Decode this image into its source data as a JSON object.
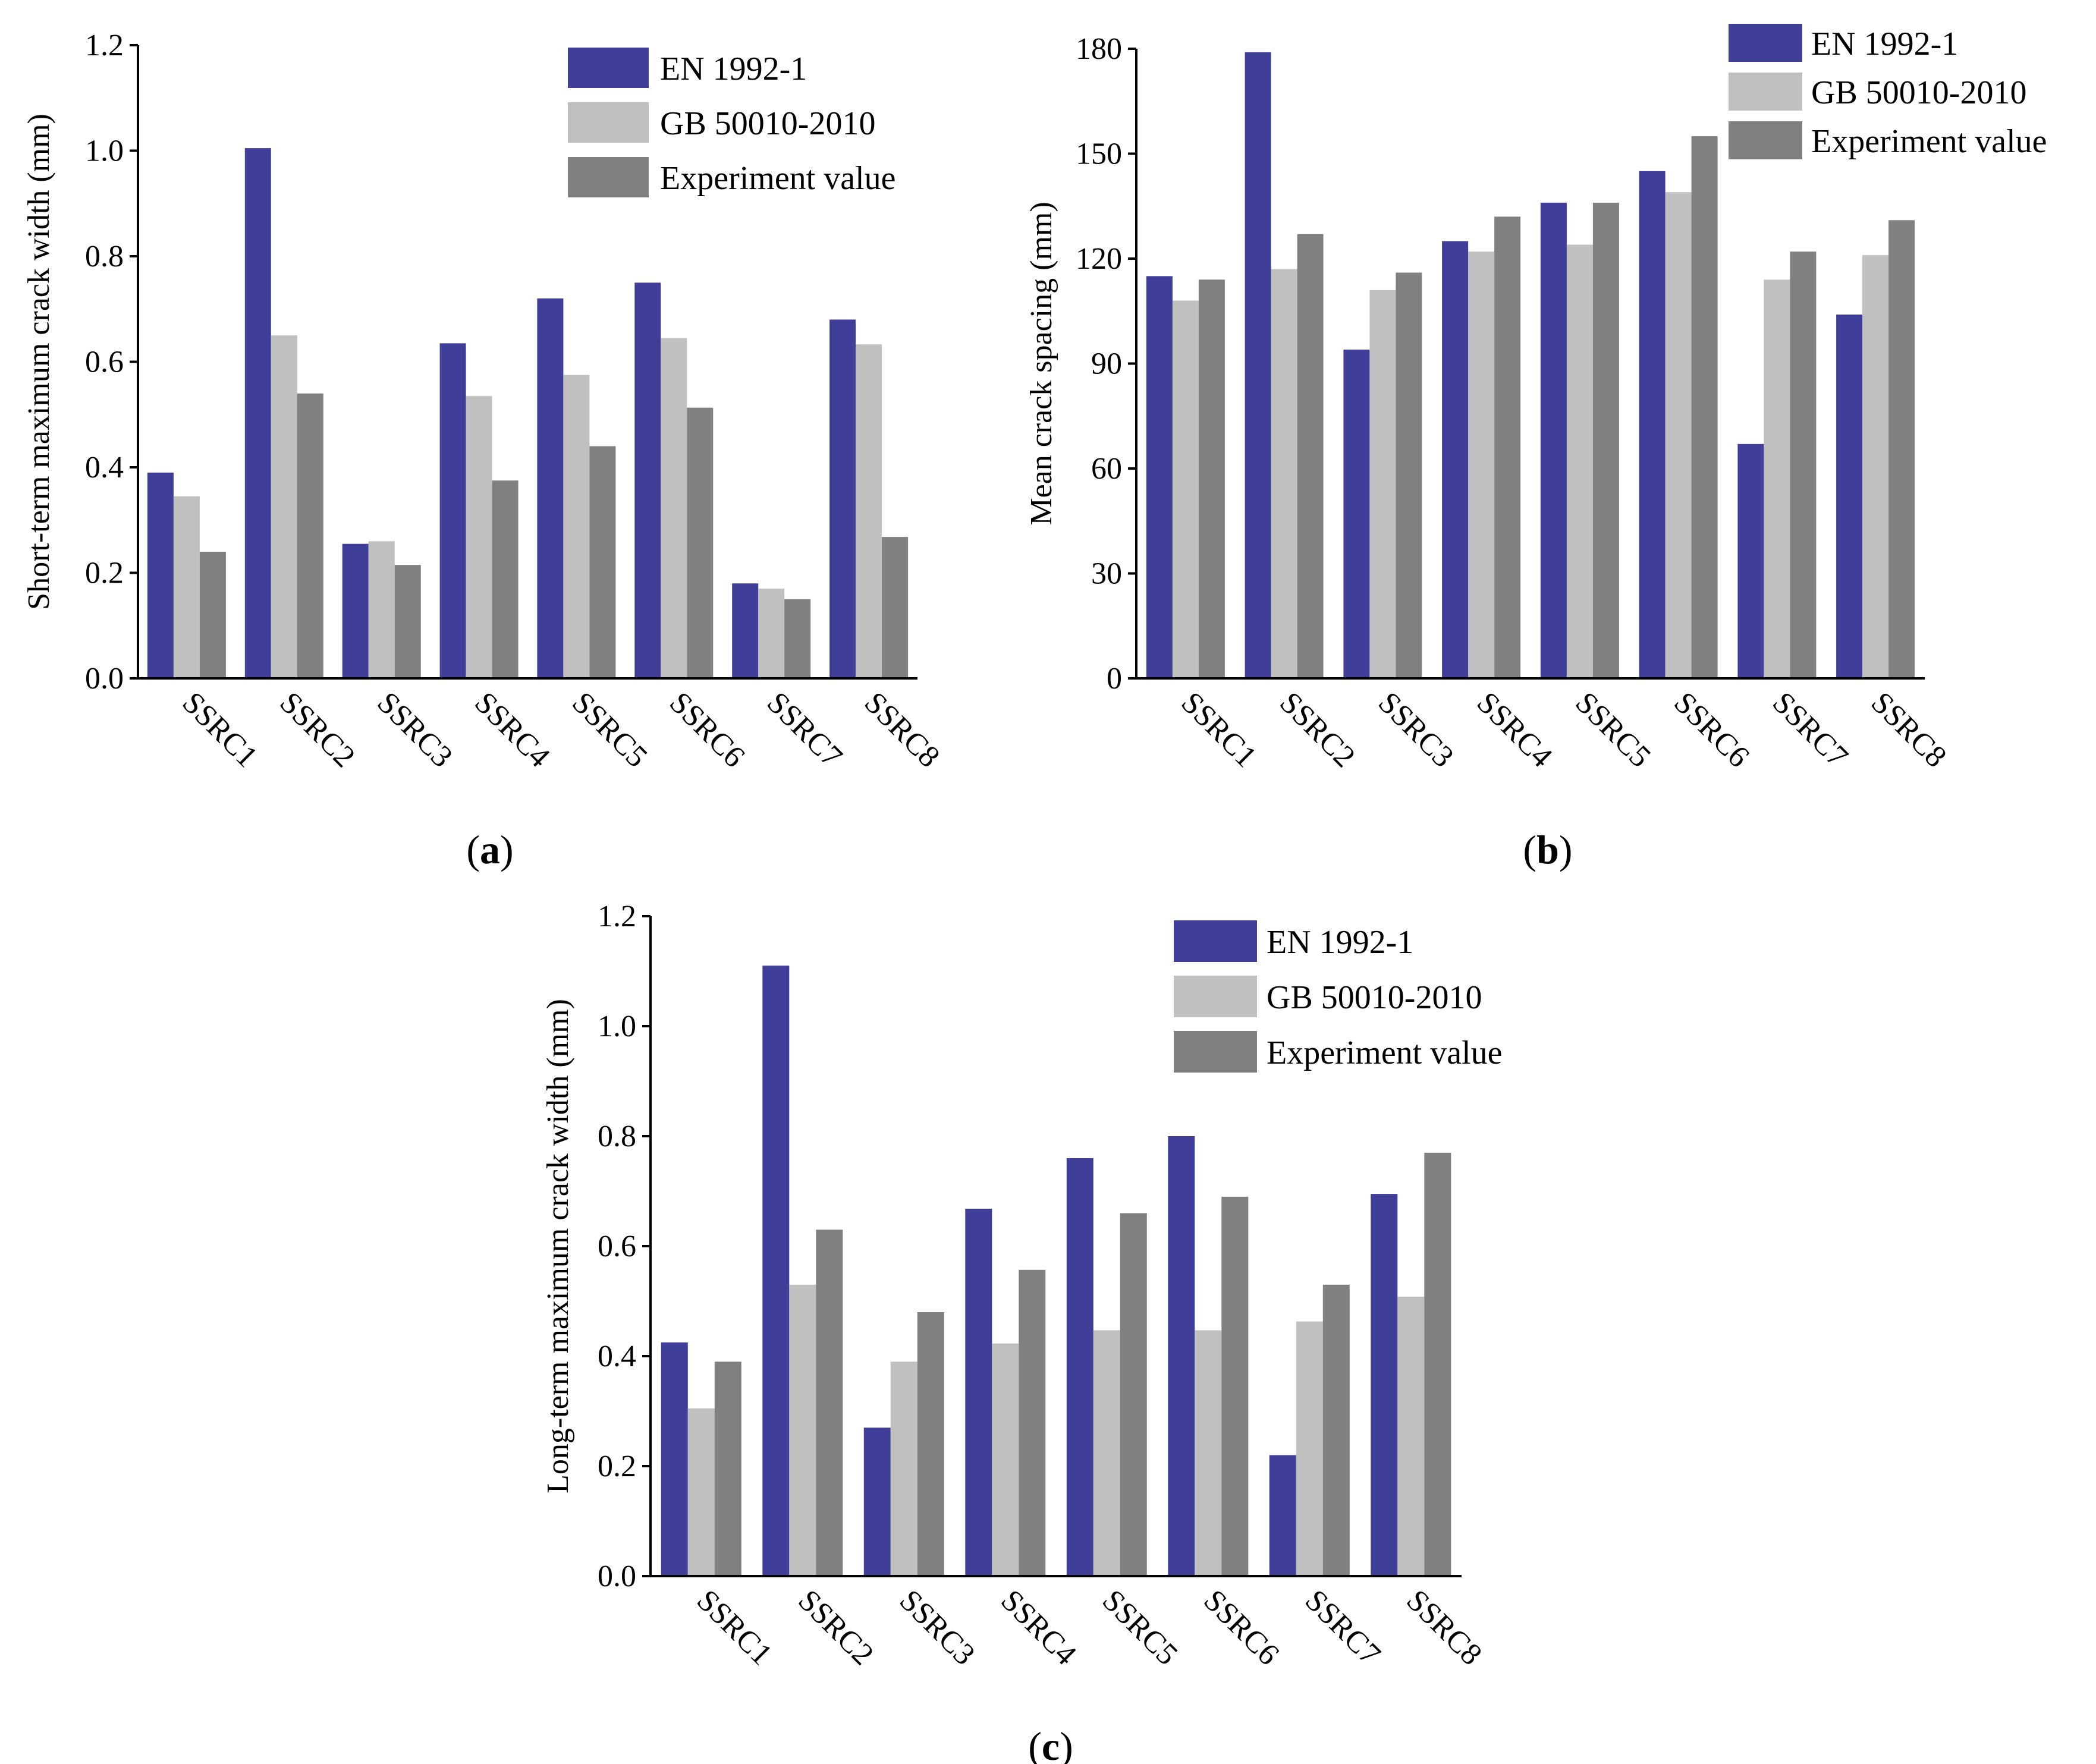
{
  "colors": {
    "en": "#3f3f99",
    "gb": "#c0c0c0",
    "exp": "#808080",
    "axis": "#000000"
  },
  "legend_labels": [
    "EN 1992-1",
    "GB 50010-2010",
    "Experiment value"
  ],
  "chart_data": [
    {
      "type": "bar",
      "panel_label": "a",
      "categories": [
        "SSRC1",
        "SSRC2",
        "SSRC3",
        "SSRC4",
        "SSRC5",
        "SSRC6",
        "SSRC7",
        "SSRC8"
      ],
      "series": [
        {
          "name": "EN 1992-1",
          "values": [
            0.39,
            1.005,
            0.255,
            0.635,
            0.72,
            0.75,
            0.18,
            0.68
          ]
        },
        {
          "name": "GB 50010-2010",
          "values": [
            0.345,
            0.65,
            0.26,
            0.535,
            0.575,
            0.645,
            0.17,
            0.633
          ]
        },
        {
          "name": "Experiment value",
          "values": [
            0.24,
            0.54,
            0.215,
            0.375,
            0.44,
            0.513,
            0.15,
            0.268
          ]
        }
      ],
      "ylabel": "Short-term maximum crack width (mm)",
      "ylim": [
        0,
        1.2
      ],
      "yticks": [
        "0.0",
        "0.2",
        "0.4",
        "0.6",
        "0.8",
        "1.0",
        "1.2"
      ],
      "legend_position": "top-right"
    },
    {
      "type": "bar",
      "panel_label": "b",
      "categories": [
        "SSRC1",
        "SSRC2",
        "SSRC3",
        "SSRC4",
        "SSRC5",
        "SSRC6",
        "SSRC7",
        "SSRC8"
      ],
      "series": [
        {
          "name": "EN 1992-1",
          "values": [
            115,
            179,
            94,
            125,
            136,
            145,
            67,
            104
          ]
        },
        {
          "name": "GB 50010-2010",
          "values": [
            108,
            117,
            111,
            122,
            124,
            139,
            114,
            121
          ]
        },
        {
          "name": "Experiment value",
          "values": [
            114,
            127,
            116,
            132,
            136,
            155,
            122,
            131
          ]
        }
      ],
      "ylabel": "Mean crack spacing (mm)",
      "ylim": [
        0,
        180
      ],
      "yticks": [
        "0",
        "30",
        "60",
        "90",
        "120",
        "150",
        "180"
      ],
      "legend_position": "top-right"
    },
    {
      "type": "bar",
      "panel_label": "c",
      "categories": [
        "SSRC1",
        "SSRC2",
        "SSRC3",
        "SSRC4",
        "SSRC5",
        "SSRC6",
        "SSRC7",
        "SSRC8"
      ],
      "series": [
        {
          "name": "EN 1992-1",
          "values": [
            0.425,
            1.11,
            0.27,
            0.668,
            0.76,
            0.8,
            0.22,
            0.695
          ]
        },
        {
          "name": "GB 50010-2010",
          "values": [
            0.305,
            0.53,
            0.39,
            0.423,
            0.447,
            0.447,
            0.463,
            0.508
          ]
        },
        {
          "name": "Experiment value",
          "values": [
            0.39,
            0.63,
            0.48,
            0.557,
            0.66,
            0.69,
            0.53,
            0.77
          ]
        }
      ],
      "ylabel": "Long-term maximum crack width (mm)",
      "ylim": [
        0,
        1.2
      ],
      "yticks": [
        "0.0",
        "0.2",
        "0.4",
        "0.6",
        "0.8",
        "1.0",
        "1.2"
      ],
      "legend_position": "top-right"
    }
  ]
}
